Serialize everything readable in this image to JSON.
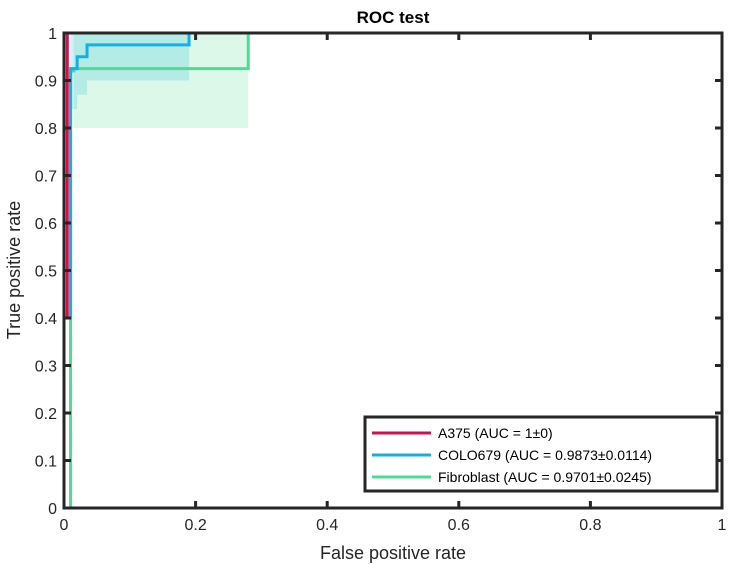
{
  "chart_data": {
    "type": "line",
    "title": "ROC test",
    "xlabel": "False positive rate",
    "ylabel": "True positive rate",
    "xlim": [
      0,
      1
    ],
    "ylim": [
      0,
      1
    ],
    "xticks": [
      0,
      0.2,
      0.4,
      0.6,
      0.8,
      1
    ],
    "yticks": [
      0,
      0.1,
      0.2,
      0.3,
      0.4,
      0.5,
      0.6,
      0.7,
      0.8,
      0.9,
      1
    ],
    "xtick_labels": [
      "0",
      "0.2",
      "0.4",
      "0.6",
      "0.8",
      "1"
    ],
    "ytick_labels": [
      "0",
      "0.1",
      "0.2",
      "0.3",
      "0.4",
      "0.5",
      "0.6",
      "0.7",
      "0.8",
      "0.9",
      "1"
    ],
    "grid": false,
    "legend_position": "bottom-right",
    "series": [
      {
        "name": "A375 (AUC = 1±0)",
        "color": "#d0104c",
        "x": [
          0,
          0,
          0.005,
          0.005,
          1
        ],
        "y": [
          0,
          0.4,
          0.4,
          1,
          1
        ],
        "band": null
      },
      {
        "name": "COLO679 (AUC = 0.9873±0.0114)",
        "color": "#11b0ed",
        "x": [
          0,
          0,
          0.01,
          0.01,
          0.02,
          0.02,
          0.035,
          0.035,
          0.19,
          0.19,
          1
        ],
        "y": [
          0,
          0.4,
          0.4,
          0.925,
          0.925,
          0.95,
          0.95,
          0.975,
          0.975,
          1,
          1
        ],
        "band": {
          "x": [
            0.01,
            0.02,
            0.02,
            0.035,
            0.035,
            0.19,
            0.19
          ],
          "lower": [
            0.84,
            0.84,
            0.87,
            0.87,
            0.9,
            0.9,
            0.96
          ],
          "upper": [
            1,
            1,
            1,
            1,
            1,
            1,
            1
          ]
        }
      },
      {
        "name": "Fibroblast (AUC = 0.9701±0.0245)",
        "color": "#4ddc93",
        "x": [
          0,
          0.01,
          0.01,
          0.015,
          0.015,
          0.28,
          0.28,
          1
        ],
        "y": [
          0,
          0,
          0.92,
          0.92,
          0.925,
          0.925,
          1,
          1
        ],
        "band": {
          "x": [
            0.015,
            0.28
          ],
          "lower": [
            0.8,
            0.8
          ],
          "upper": [
            1,
            1
          ]
        }
      }
    ]
  }
}
